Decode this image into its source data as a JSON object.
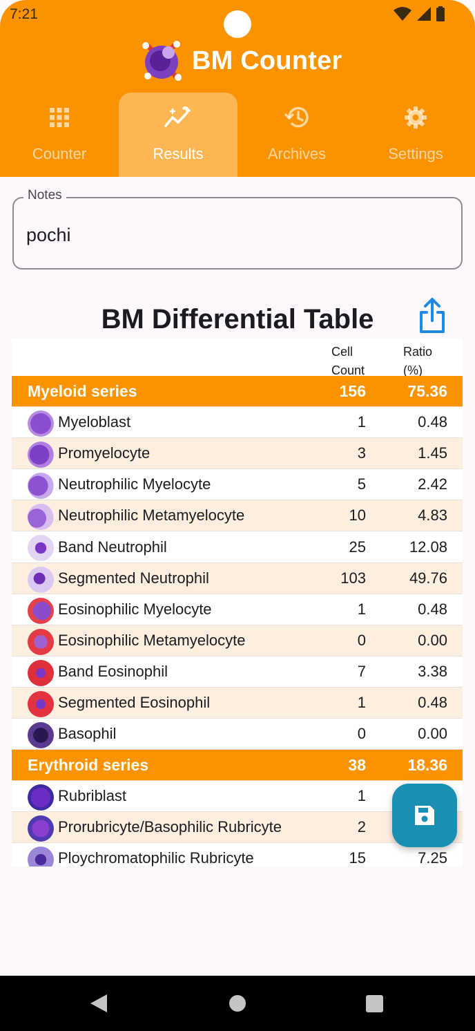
{
  "status_bar": {
    "time": "7:21"
  },
  "app": {
    "title": "BM Counter"
  },
  "tabs": [
    {
      "label": "Counter",
      "icon": "grid-icon",
      "active": false
    },
    {
      "label": "Results",
      "icon": "trending-sparkle-icon",
      "active": true
    },
    {
      "label": "Archives",
      "icon": "history-icon",
      "active": false
    },
    {
      "label": "Settings",
      "icon": "gear-icon",
      "active": false
    }
  ],
  "notes": {
    "label": "Notes",
    "value": "pochi"
  },
  "table": {
    "title": "BM Differential Table",
    "header_count": "Cell Count",
    "header_ratio": "Ratio (%)",
    "rows": [
      {
        "type": "group",
        "name": "Myeloid series",
        "count": "156",
        "ratio": "75.36"
      },
      {
        "type": "item",
        "name": "Myeloblast",
        "count": "1",
        "ratio": "0.48",
        "icon": "myeloblast-icon"
      },
      {
        "type": "item",
        "name": "Promyelocyte",
        "count": "3",
        "ratio": "1.45",
        "icon": "promyelocyte-icon"
      },
      {
        "type": "item",
        "name": "Neutrophilic Myelocyte",
        "count": "5",
        "ratio": "2.42",
        "icon": "neutrophilic-myelocyte-icon"
      },
      {
        "type": "item",
        "name": "Neutrophilic Metamyelocyte",
        "count": "10",
        "ratio": "4.83",
        "icon": "neutrophilic-metamyelocyte-icon"
      },
      {
        "type": "item",
        "name": "Band Neutrophil",
        "count": "25",
        "ratio": "12.08",
        "icon": "band-neutrophil-icon"
      },
      {
        "type": "item",
        "name": "Segmented Neutrophil",
        "count": "103",
        "ratio": "49.76",
        "icon": "segmented-neutrophil-icon"
      },
      {
        "type": "item",
        "name": "Eosinophilic Myelocyte",
        "count": "1",
        "ratio": "0.48",
        "icon": "eosinophilic-myelocyte-icon"
      },
      {
        "type": "item",
        "name": "Eosinophilic Metamyelocyte",
        "count": "0",
        "ratio": "0.00",
        "icon": "eosinophilic-metamyelocyte-icon"
      },
      {
        "type": "item",
        "name": "Band Eosinophil",
        "count": "7",
        "ratio": "3.38",
        "icon": "band-eosinophil-icon"
      },
      {
        "type": "item",
        "name": "Segmented Eosinophil",
        "count": "1",
        "ratio": "0.48",
        "icon": "segmented-eosinophil-icon"
      },
      {
        "type": "item",
        "name": "Basophil",
        "count": "0",
        "ratio": "0.00",
        "icon": "basophil-icon"
      },
      {
        "type": "group",
        "name": "Erythroid series",
        "count": "38",
        "ratio": "18.36"
      },
      {
        "type": "item",
        "name": "Rubriblast",
        "count": "1",
        "ratio": "",
        "icon": "rubriblast-icon"
      },
      {
        "type": "item",
        "name": "Prorubricyte/Basophilic Rubricyte",
        "count": "2",
        "ratio": "",
        "icon": "prorubricyte-icon"
      },
      {
        "type": "item",
        "name": "Ploychromatophilic Rubricyte",
        "count": "15",
        "ratio": "7.25",
        "icon": "polychromatophilic-rubricyte-icon"
      }
    ]
  },
  "colors": {
    "accent": "#fb9300",
    "fab": "#1b8fb3",
    "share": "#1e88e5",
    "row_alt": "#fdefe0"
  },
  "fab": {
    "icon": "save-icon"
  },
  "share": {
    "icon": "share-icon"
  }
}
